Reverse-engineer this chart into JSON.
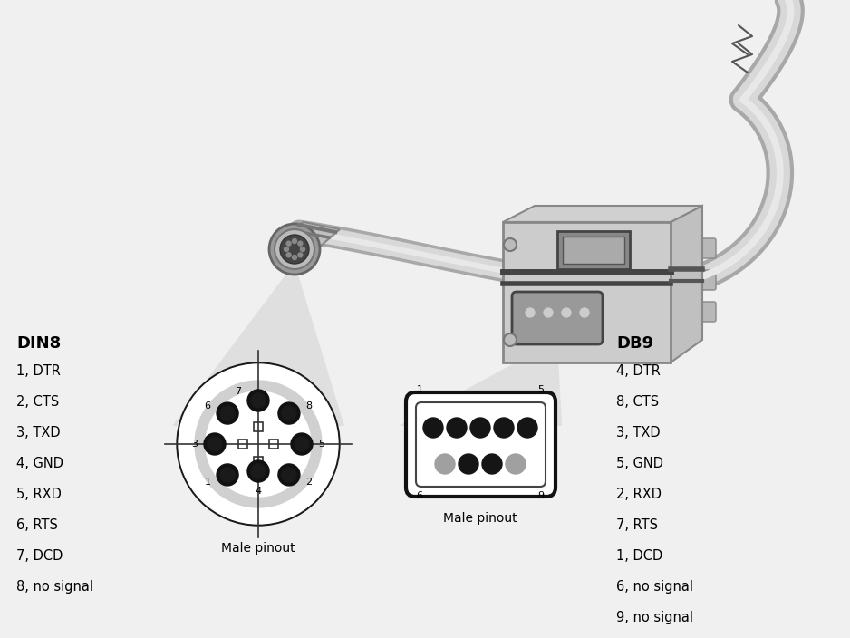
{
  "bg_color": "#f0f0f0",
  "din8_title": "DIN8",
  "db9_title": "DB9",
  "din8_labels": [
    "1, DTR",
    "2, CTS",
    "3, TXD",
    "4, GND",
    "5, RXD",
    "6, RTS",
    "7, DCD",
    "8, no signal"
  ],
  "db9_labels": [
    "4, DTR",
    "8, CTS",
    "3, TXD",
    "5, GND",
    "2, RXD",
    "7, RTS",
    "1, DCD",
    "6, no signal",
    "9, no signal"
  ],
  "cable_dark": "#a8a8a8",
  "cable_mid": "#c8c8c8",
  "cable_light": "#d8d8d8",
  "label_fontsize": 10.5,
  "title_fontsize": 13,
  "pin_black": "#151515",
  "pin_gray": "#a0a0a0"
}
